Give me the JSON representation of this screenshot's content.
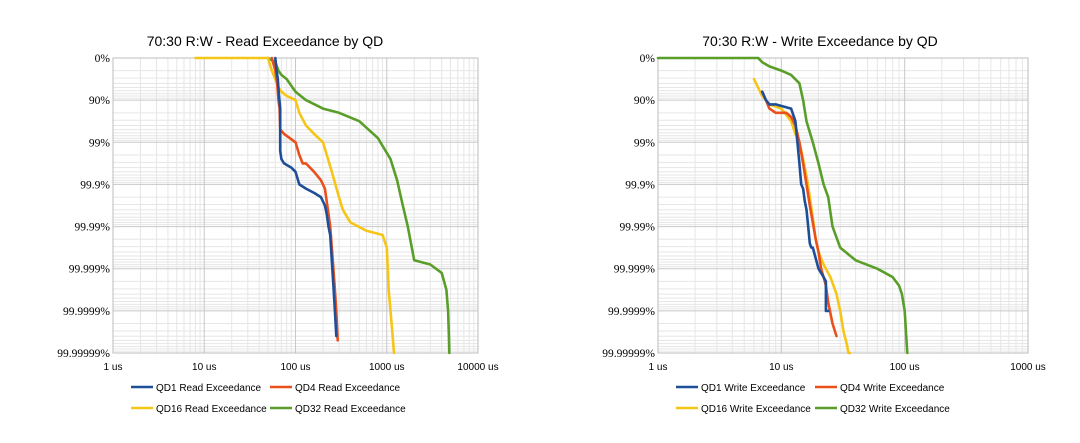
{
  "colors": {
    "QD1": "#1f4e99",
    "QD4": "#e8501c",
    "QD16": "#f5c518",
    "QD32": "#5a9e2a",
    "grid_major": "#c8c8c8",
    "grid_minor": "#e6e6e6"
  },
  "chart_data": [
    {
      "type": "line",
      "title": "70:30 R:W - Read Exceedance by QD",
      "x_scale": "log",
      "y_scale": "log-percentile",
      "xlim": [
        1,
        10000
      ],
      "x_ticks": [
        {
          "value": 1,
          "label": "1 us"
        },
        {
          "value": 10,
          "label": "10 us"
        },
        {
          "value": 100,
          "label": "100 us"
        },
        {
          "value": 1000,
          "label": "1000 us"
        },
        {
          "value": 10000,
          "label": "10000 us"
        }
      ],
      "y_ticks": [
        "0%",
        "90%",
        "99%",
        "99.9%",
        "99.99%",
        "99.999%",
        "99.9999%",
        "99.99999%"
      ],
      "grid": true,
      "legend_position": "bottom",
      "series": [
        {
          "name": "QD1 Read Exceedance",
          "key": "QD1",
          "x": [
            60,
            62,
            64,
            66,
            68,
            68,
            70,
            75,
            90,
            100,
            110,
            130,
            160,
            190,
            210,
            220,
            230,
            240,
            250,
            260,
            270,
            280
          ],
          "y": [
            0,
            0.3,
            0.5,
            0.9,
            1.2,
            2.2,
            2.4,
            2.5,
            2.6,
            2.7,
            3.0,
            3.1,
            3.2,
            3.3,
            3.5,
            3.7,
            4.0,
            4.2,
            4.8,
            5.4,
            6.0,
            6.6
          ]
        },
        {
          "name": "QD4 Read Exceedance",
          "key": "QD4",
          "x": [
            55,
            60,
            63,
            65,
            67,
            68,
            75,
            100,
            110,
            120,
            130,
            160,
            190,
            210,
            220,
            230,
            240,
            250,
            260,
            270,
            280,
            290
          ],
          "y": [
            0,
            0.3,
            0.6,
            1.0,
            1.2,
            1.7,
            1.8,
            2.0,
            2.3,
            2.5,
            2.5,
            2.7,
            2.9,
            3.1,
            3.4,
            3.7,
            4.0,
            4.5,
            5.0,
            5.5,
            6.0,
            6.7
          ]
        },
        {
          "name": "QD16 Read Exceedance",
          "key": "QD16",
          "x": [
            8,
            10,
            15,
            50,
            55,
            60,
            65,
            70,
            80,
            100,
            110,
            130,
            160,
            200,
            250,
            300,
            330,
            400,
            600,
            900,
            1000,
            1050,
            1100,
            1150,
            1200
          ],
          "y": [
            0,
            0,
            0,
            0,
            0.3,
            0.5,
            0.7,
            0.8,
            0.9,
            1.0,
            1.3,
            1.6,
            1.8,
            2.0,
            2.7,
            3.3,
            3.6,
            3.9,
            4.1,
            4.2,
            4.5,
            5.5,
            6.0,
            6.5,
            7.0
          ]
        },
        {
          "name": "QD32 Read Exceedance",
          "key": "QD32",
          "x": [
            50,
            60,
            65,
            70,
            80,
            100,
            130,
            200,
            300,
            500,
            800,
            1100,
            1300,
            1500,
            1700,
            2000,
            3000,
            4000,
            4500,
            4700,
            4800,
            4850
          ],
          "y": [
            0,
            0.1,
            0.3,
            0.4,
            0.5,
            0.8,
            1.0,
            1.2,
            1.3,
            1.5,
            1.9,
            2.4,
            2.9,
            3.5,
            4.0,
            4.8,
            4.9,
            5.1,
            5.5,
            6.0,
            6.6,
            7.0
          ]
        }
      ]
    },
    {
      "type": "line",
      "title": "70:30 R:W - Write Exceedance by QD",
      "x_scale": "log",
      "y_scale": "log-percentile",
      "xlim": [
        1,
        1000
      ],
      "x_ticks": [
        {
          "value": 1,
          "label": "1 us"
        },
        {
          "value": 10,
          "label": "10 us"
        },
        {
          "value": 100,
          "label": "100 us"
        },
        {
          "value": 1000,
          "label": "1000 us"
        }
      ],
      "y_ticks": [
        "0%",
        "90%",
        "99%",
        "99.9%",
        "99.99%",
        "99.999%",
        "99.9999%",
        "99.99999%"
      ],
      "grid": true,
      "legend_position": "bottom",
      "series": [
        {
          "name": "QD1 Write Exceedance",
          "key": "QD1",
          "x": [
            7,
            7.5,
            8,
            9,
            12,
            13,
            13.5,
            14,
            14.5,
            15,
            15.5,
            16,
            16.5,
            17,
            17.5,
            18,
            20,
            22,
            23,
            23,
            24
          ],
          "y": [
            0.8,
            1.0,
            1.1,
            1.1,
            1.2,
            1.5,
            2.0,
            2.5,
            3.0,
            3.1,
            3.4,
            3.6,
            4.0,
            4.4,
            4.5,
            4.5,
            5.0,
            5.2,
            5.3,
            6.0,
            6.0
          ]
        },
        {
          "name": "QD4 Write Exceedance",
          "key": "QD4",
          "x": [
            7,
            7.5,
            8,
            9,
            11,
            12,
            13,
            14,
            15,
            16,
            17,
            18,
            19,
            20,
            21,
            22,
            23,
            24,
            26,
            28
          ],
          "y": [
            0.8,
            1.0,
            1.2,
            1.3,
            1.3,
            1.4,
            1.6,
            2.0,
            2.5,
            3.0,
            3.5,
            3.9,
            4.3,
            4.6,
            5.0,
            5.2,
            5.4,
            5.8,
            6.3,
            6.6
          ]
        },
        {
          "name": "QD16 Write Exceedance",
          "key": "QD16",
          "x": [
            6,
            7,
            8,
            10,
            12,
            13,
            14,
            15,
            16,
            17,
            18,
            19,
            20,
            22,
            25,
            28,
            30,
            32,
            34,
            35,
            36
          ],
          "y": [
            0.5,
            0.9,
            1.1,
            1.2,
            1.5,
            1.8,
            2.0,
            2.4,
            2.8,
            3.3,
            3.8,
            4.3,
            4.6,
            4.9,
            5.2,
            5.6,
            6.0,
            6.5,
            6.8,
            7.0,
            7.0
          ]
        },
        {
          "name": "QD32 Write Exceedance",
          "key": "QD32",
          "x": [
            1,
            6.5,
            7,
            8,
            10,
            12,
            14,
            15,
            16,
            18,
            20,
            22,
            24,
            26,
            30,
            40,
            60,
            80,
            90,
            95,
            100,
            102,
            105
          ],
          "y": [
            0,
            0,
            0.1,
            0.2,
            0.3,
            0.4,
            0.6,
            1.0,
            1.5,
            2.0,
            2.5,
            3.0,
            3.3,
            4.0,
            4.5,
            4.8,
            5.0,
            5.2,
            5.4,
            5.6,
            6.0,
            6.4,
            7.0
          ]
        }
      ]
    }
  ]
}
